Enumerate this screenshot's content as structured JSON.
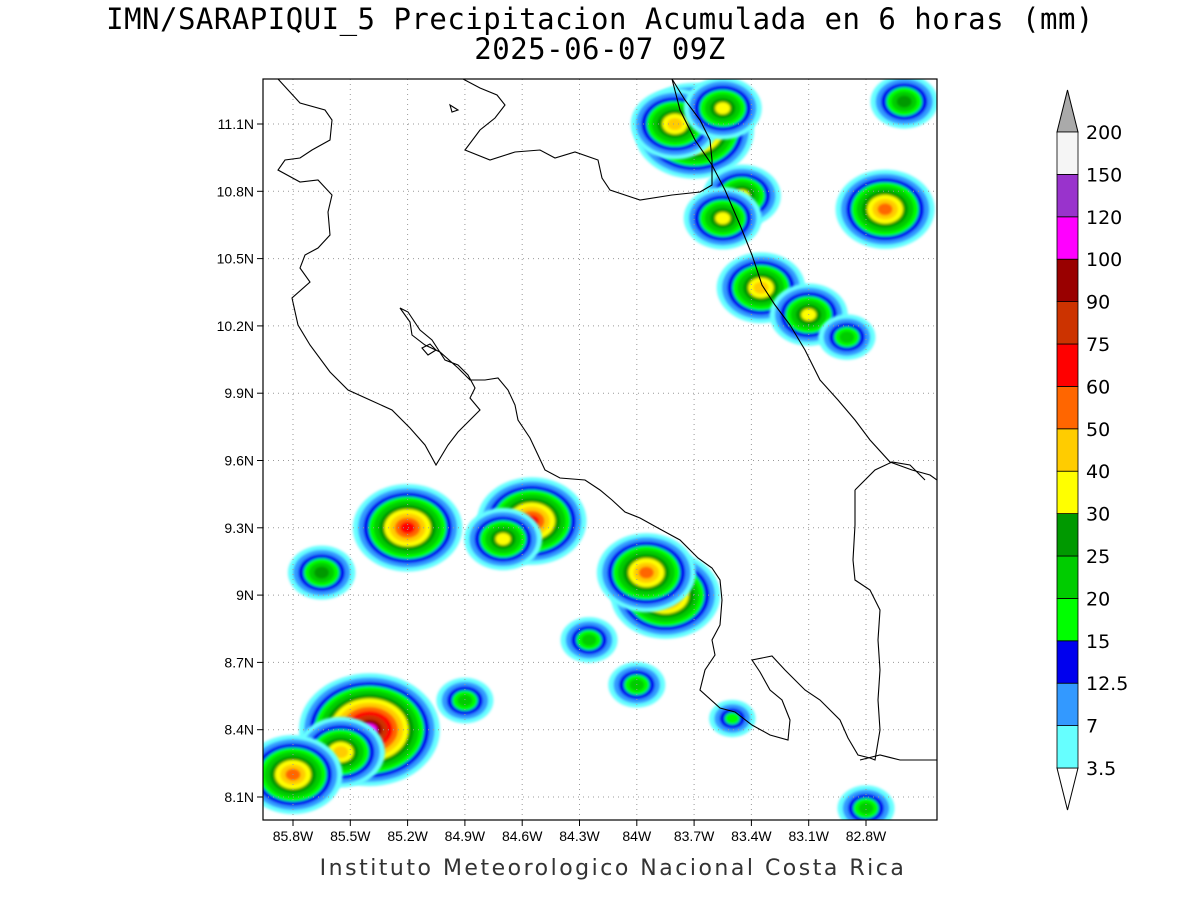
{
  "title": "IMN/SARAPIQUI_5 Precipitacion Acumulada en 6 horas (mm)",
  "subtitle": "2025-06-07 09Z",
  "credit": "Instituto Meteorologico Nacional Costa Rica",
  "map": {
    "lon_range": [
      -86.0,
      -83.0
    ],
    "lat_range": [
      8.0,
      11.3
    ],
    "lat_ticks": [
      "11.1N",
      "10.8N",
      "10.5N",
      "10.2N",
      "9.9N",
      "9.6N",
      "9.3N",
      "9N",
      "8.7N",
      "8.4N",
      "8.1N"
    ],
    "lon_ticks": [
      "85.8W",
      "85.5W",
      "85.2W",
      "84.9W",
      "84.6W",
      "84.3W",
      "84W",
      "83.7W",
      "83.4W",
      "83.1W",
      "82.8W"
    ],
    "grid": true
  },
  "colorbar": {
    "labels": [
      "3.5",
      "7",
      "12.5",
      "15",
      "20",
      "25",
      "30",
      "40",
      "50",
      "60",
      "75",
      "90",
      "100",
      "120",
      "150",
      "200"
    ],
    "colors": [
      "#66ffff",
      "#3399ff",
      "#0000ee",
      "#00ff00",
      "#00cc00",
      "#009900",
      "#ffff00",
      "#ffcc00",
      "#ff6600",
      "#ff0000",
      "#cc3300",
      "#990000",
      "#ff00ff",
      "#9933cc",
      "#f5f5f5"
    ],
    "over_color": "#aaaaaa",
    "under_color": "#ffffff"
  },
  "precip_cells": [
    {
      "lon": -83.7,
      "lat": 11.07,
      "level": 10
    },
    {
      "lon": -83.8,
      "lat": 11.1,
      "level": 7
    },
    {
      "lon": -83.55,
      "lat": 11.17,
      "level": 6
    },
    {
      "lon": -83.45,
      "lat": 10.78,
      "level": 6
    },
    {
      "lon": -83.55,
      "lat": 10.68,
      "level": 6
    },
    {
      "lon": -83.35,
      "lat": 10.37,
      "level": 7
    },
    {
      "lon": -83.1,
      "lat": 10.25,
      "level": 6
    },
    {
      "lon": -82.7,
      "lat": 10.72,
      "level": 8
    },
    {
      "lon": -82.6,
      "lat": 11.2,
      "level": 5
    },
    {
      "lon": -82.9,
      "lat": 10.15,
      "level": 4
    },
    {
      "lon": -84.55,
      "lat": 9.33,
      "level": 9
    },
    {
      "lon": -84.7,
      "lat": 9.25,
      "level": 6
    },
    {
      "lon": -85.2,
      "lat": 9.3,
      "level": 9
    },
    {
      "lon": -83.85,
      "lat": 9.0,
      "level": 9
    },
    {
      "lon": -83.95,
      "lat": 9.1,
      "level": 8
    },
    {
      "lon": -85.4,
      "lat": 8.4,
      "level": 12
    },
    {
      "lon": -85.55,
      "lat": 8.3,
      "level": 7
    },
    {
      "lon": -85.8,
      "lat": 8.2,
      "level": 8
    },
    {
      "lon": -85.65,
      "lat": 9.1,
      "level": 5
    },
    {
      "lon": -84.25,
      "lat": 8.8,
      "level": 4
    },
    {
      "lon": -84.0,
      "lat": 8.6,
      "level": 4
    },
    {
      "lon": -84.9,
      "lat": 8.53,
      "level": 4
    },
    {
      "lon": -83.5,
      "lat": 8.45,
      "level": 3
    },
    {
      "lon": -82.8,
      "lat": 8.05,
      "level": 4
    }
  ]
}
